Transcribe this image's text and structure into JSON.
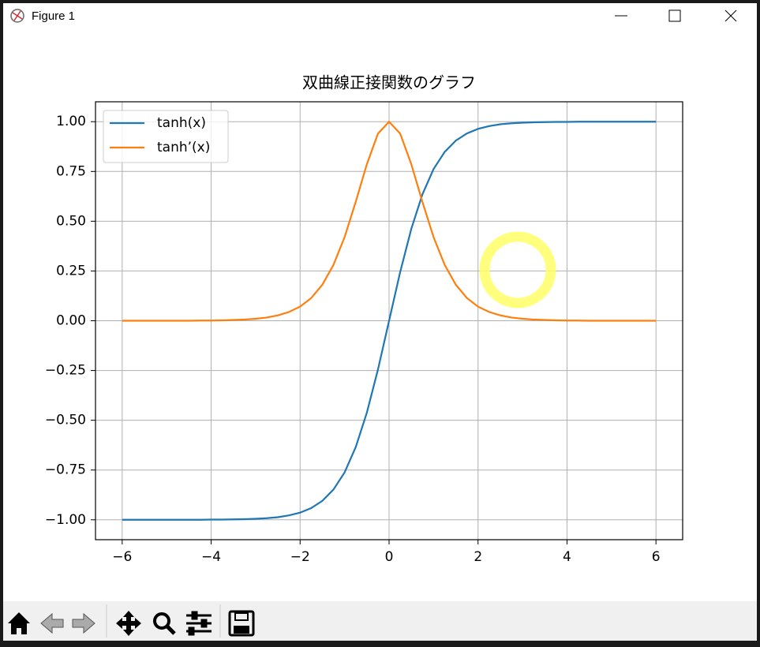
{
  "window": {
    "title": "Figure 1"
  },
  "chart_data": {
    "type": "line",
    "title": "双曲線正接関数のグラフ",
    "x": [
      -6,
      -5.75,
      -5.5,
      -5.25,
      -5,
      -4.75,
      -4.5,
      -4.25,
      -4,
      -3.75,
      -3.5,
      -3.25,
      -3,
      -2.75,
      -2.5,
      -2.25,
      -2,
      -1.75,
      -1.5,
      -1.25,
      -1,
      -0.75,
      -0.5,
      -0.25,
      0,
      0.25,
      0.5,
      0.75,
      1,
      1.25,
      1.5,
      1.75,
      2,
      2.25,
      2.5,
      2.75,
      3,
      3.25,
      3.5,
      3.75,
      4,
      4.25,
      4.5,
      4.75,
      5,
      5.25,
      5.5,
      5.75,
      6
    ],
    "series": [
      {
        "name": "tanh(x)",
        "color": "#1f77b4",
        "values": [
          -1.0,
          -1.0,
          -1.0,
          -1.0,
          -1.0,
          -1.0,
          -1.0,
          -1.0,
          -0.999,
          -0.999,
          -0.998,
          -0.997,
          -0.995,
          -0.992,
          -0.987,
          -0.978,
          -0.964,
          -0.941,
          -0.905,
          -0.848,
          -0.762,
          -0.635,
          -0.462,
          -0.245,
          0,
          0.245,
          0.462,
          0.635,
          0.762,
          0.848,
          0.905,
          0.941,
          0.964,
          0.978,
          0.987,
          0.992,
          0.995,
          0.997,
          0.998,
          0.999,
          0.999,
          1.0,
          1.0,
          1.0,
          1.0,
          1.0,
          1.0,
          1.0,
          1.0
        ]
      },
      {
        "name": "tanh’(x)",
        "color": "#ff7f0e",
        "values": [
          0,
          0,
          0,
          0,
          0,
          0,
          0,
          0.001,
          0.001,
          0.002,
          0.004,
          0.006,
          0.01,
          0.016,
          0.027,
          0.044,
          0.071,
          0.114,
          0.181,
          0.281,
          0.42,
          0.597,
          0.786,
          0.94,
          1,
          0.94,
          0.786,
          0.597,
          0.42,
          0.281,
          0.181,
          0.114,
          0.071,
          0.044,
          0.027,
          0.016,
          0.01,
          0.006,
          0.004,
          0.002,
          0.001,
          0.001,
          0,
          0,
          0,
          0,
          0,
          0,
          0
        ]
      }
    ],
    "xlim": [
      -6.6,
      6.6
    ],
    "ylim": [
      -1.1,
      1.1
    ],
    "xticks": [
      {
        "value": -6,
        "label": "−6"
      },
      {
        "value": -4,
        "label": "−4"
      },
      {
        "value": -2,
        "label": "−2"
      },
      0,
      2,
      4,
      6
    ],
    "yticks": [
      {
        "value": -1,
        "label": "−1.00"
      },
      {
        "value": -0.75,
        "label": "−0.75"
      },
      {
        "value": -0.5,
        "label": "−0.50"
      },
      {
        "value": -0.25,
        "label": "−0.25"
      },
      {
        "value": 0,
        "label": "0.00"
      },
      {
        "value": 0.25,
        "label": "0.25"
      },
      {
        "value": 0.5,
        "label": "0.50"
      },
      {
        "value": 0.75,
        "label": "0.75"
      },
      {
        "value": 1,
        "label": "1.00"
      }
    ],
    "grid": true,
    "legend": "upper left"
  }
}
